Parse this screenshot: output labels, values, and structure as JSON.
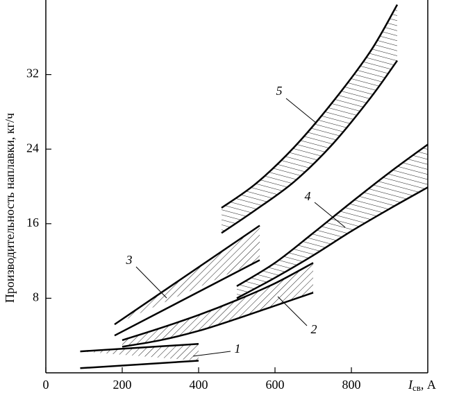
{
  "chart_data": {
    "type": "band",
    "x_label": {
      "symbol": "I",
      "subscript": "св",
      "unit": ", A"
    },
    "y_label": "Производительность наплавки, кг/ч",
    "xlim": [
      0,
      1000
    ],
    "xticks": [
      0,
      200,
      400,
      600,
      800
    ],
    "ylim": [
      0,
      40
    ],
    "yticks": [
      8,
      16,
      24,
      32
    ],
    "color": "#000000",
    "series": [
      {
        "name": "1",
        "x": [
          90,
          400
        ],
        "upper": [
          2.3,
          3.1
        ],
        "lower": [
          0.5,
          1.3
        ]
      },
      {
        "name": "2",
        "x": [
          200,
          300,
          400,
          500,
          600,
          700
        ],
        "upper": [
          3.5,
          4.8,
          6.2,
          7.8,
          9.6,
          11.8
        ],
        "lower": [
          2.8,
          3.5,
          4.5,
          5.8,
          7.2,
          8.6
        ]
      },
      {
        "name": "3",
        "x": [
          180,
          560
        ],
        "upper": [
          5.2,
          15.8
        ],
        "lower": [
          4.0,
          12.1
        ]
      },
      {
        "name": "4",
        "x": [
          500,
          600,
          700,
          800,
          900,
          1000
        ],
        "upper": [
          9.3,
          11.8,
          15.0,
          18.3,
          21.5,
          24.5
        ],
        "lower": [
          8.0,
          10.2,
          12.6,
          15.2,
          17.6,
          19.9
        ]
      },
      {
        "name": "5",
        "x": [
          460,
          550,
          650,
          750,
          850,
          920
        ],
        "upper": [
          17.7,
          20.3,
          24.2,
          29.0,
          34.5,
          39.5
        ],
        "lower": [
          15.0,
          17.5,
          20.5,
          24.5,
          29.5,
          33.5
        ]
      }
    ]
  }
}
